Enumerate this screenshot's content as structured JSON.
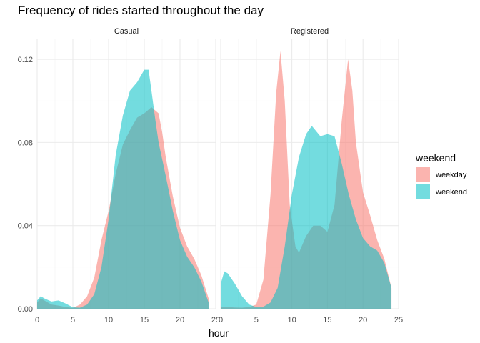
{
  "chart_data": {
    "type": "area",
    "title": "Frequency of rides started throughout the day",
    "xlabel": "hour",
    "ylabel": "",
    "xlim": [
      0,
      25
    ],
    "ylim": [
      0,
      0.13
    ],
    "x_ticks": [
      0,
      5,
      10,
      15,
      20,
      25
    ],
    "x_tick_labels": [
      "0",
      "5",
      "10",
      "15",
      "20",
      "25"
    ],
    "y_ticks": [
      0,
      0.04,
      0.08,
      0.12
    ],
    "y_tick_labels": [
      "0.00",
      "0.04",
      "0.08",
      "0.12"
    ],
    "grid": true,
    "legend": {
      "title": "weekend",
      "position": "right",
      "entries": [
        {
          "label": "weekday",
          "color": "#F8766D"
        },
        {
          "label": "weekend",
          "color": "#00BFC4"
        }
      ]
    },
    "panels": [
      {
        "label": "Casual",
        "series": [
          {
            "name": "weekday",
            "color": "#F8766D",
            "points": [
              [
                0,
                0.003
              ],
              [
                0.5,
                0.005
              ],
              [
                1,
                0.004
              ],
              [
                2,
                0.002
              ],
              [
                3,
                0.0015
              ],
              [
                4,
                0.0008
              ],
              [
                5,
                0.0004
              ],
              [
                6,
                0.002
              ],
              [
                7,
                0.006
              ],
              [
                8,
                0.015
              ],
              [
                9,
                0.033
              ],
              [
                10,
                0.047
              ],
              [
                11,
                0.065
              ],
              [
                12,
                0.079
              ],
              [
                13,
                0.086
              ],
              [
                14,
                0.092
              ],
              [
                15,
                0.094
              ],
              [
                16,
                0.097
              ],
              [
                17,
                0.094
              ],
              [
                17.5,
                0.085
              ],
              [
                18,
                0.073
              ],
              [
                19,
                0.054
              ],
              [
                20,
                0.039
              ],
              [
                21,
                0.03
              ],
              [
                22,
                0.024
              ],
              [
                23,
                0.016
              ],
              [
                24,
                0.005
              ]
            ]
          },
          {
            "name": "weekend",
            "color": "#00BFC4",
            "points": [
              [
                0,
                0.004
              ],
              [
                0.5,
                0.006
              ],
              [
                1,
                0.005
              ],
              [
                2,
                0.0035
              ],
              [
                3,
                0.004
              ],
              [
                4,
                0.0025
              ],
              [
                5,
                0.0007
              ],
              [
                6,
                0.0005
              ],
              [
                7,
                0.002
              ],
              [
                8,
                0.007
              ],
              [
                9,
                0.02
              ],
              [
                10,
                0.043
              ],
              [
                11,
                0.074
              ],
              [
                12,
                0.093
              ],
              [
                13,
                0.105
              ],
              [
                14,
                0.109
              ],
              [
                15,
                0.115
              ],
              [
                15.6,
                0.115
              ],
              [
                16,
                0.105
              ],
              [
                16.5,
                0.092
              ],
              [
                17,
                0.08
              ],
              [
                18,
                0.064
              ],
              [
                19,
                0.047
              ],
              [
                20,
                0.033
              ],
              [
                21,
                0.025
              ],
              [
                22,
                0.02
              ],
              [
                23,
                0.013
              ],
              [
                24,
                0.003
              ]
            ]
          }
        ]
      },
      {
        "label": "Registered",
        "series": [
          {
            "name": "weekday",
            "color": "#F8766D",
            "points": [
              [
                0,
                0.001
              ],
              [
                1,
                0.0008
              ],
              [
                2,
                0.0006
              ],
              [
                3,
                0.0005
              ],
              [
                4,
                0.0008
              ],
              [
                5,
                0.002
              ],
              [
                6,
                0.014
              ],
              [
                7,
                0.055
              ],
              [
                7.8,
                0.104
              ],
              [
                8.4,
                0.124
              ],
              [
                9,
                0.1
              ],
              [
                9.7,
                0.05
              ],
              [
                10.5,
                0.03
              ],
              [
                11,
                0.027
              ],
              [
                12,
                0.035
              ],
              [
                13,
                0.04
              ],
              [
                14,
                0.04
              ],
              [
                15,
                0.037
              ],
              [
                16,
                0.05
              ],
              [
                17,
                0.09
              ],
              [
                17.9,
                0.12
              ],
              [
                18.5,
                0.105
              ],
              [
                19,
                0.08
              ],
              [
                20,
                0.056
              ],
              [
                21,
                0.045
              ],
              [
                22,
                0.033
              ],
              [
                23,
                0.024
              ],
              [
                24,
                0.01
              ]
            ]
          },
          {
            "name": "weekend",
            "color": "#00BFC4",
            "points": [
              [
                0,
                0.012
              ],
              [
                0.5,
                0.018
              ],
              [
                1,
                0.017
              ],
              [
                2,
                0.012
              ],
              [
                3,
                0.006
              ],
              [
                4,
                0.002
              ],
              [
                5,
                0.0008
              ],
              [
                6,
                0.001
              ],
              [
                7,
                0.003
              ],
              [
                8,
                0.01
              ],
              [
                9,
                0.03
              ],
              [
                10,
                0.055
              ],
              [
                11,
                0.073
              ],
              [
                12,
                0.084
              ],
              [
                12.8,
                0.088
              ],
              [
                14,
                0.083
              ],
              [
                15,
                0.084
              ],
              [
                16,
                0.083
              ],
              [
                17,
                0.07
              ],
              [
                18,
                0.055
              ],
              [
                19,
                0.043
              ],
              [
                20,
                0.034
              ],
              [
                21,
                0.03
              ],
              [
                22,
                0.028
              ],
              [
                23,
                0.022
              ],
              [
                24,
                0.01
              ]
            ]
          }
        ]
      }
    ]
  }
}
